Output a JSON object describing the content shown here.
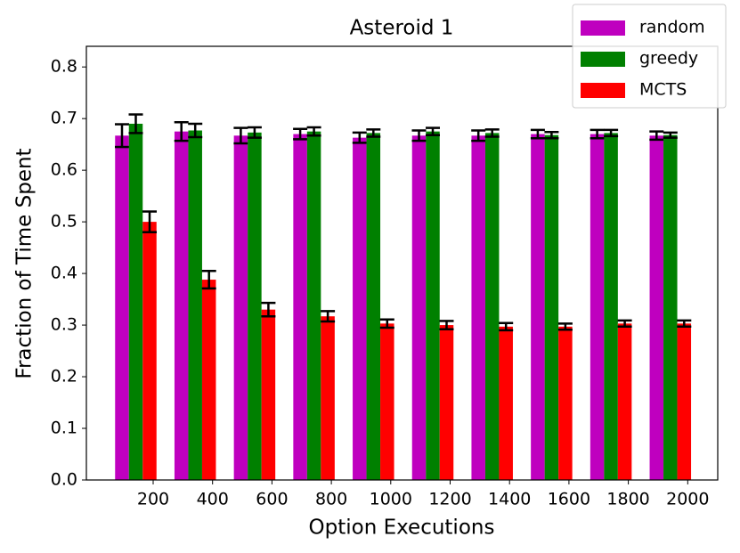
{
  "chart_data": {
    "type": "bar",
    "title": "Asteroid 1",
    "x_label": "Option Executions",
    "y_label": "Fraction of Time Spent",
    "categories": [
      "200",
      "400",
      "600",
      "800",
      "1000",
      "1200",
      "1400",
      "1600",
      "1800",
      "2000"
    ],
    "series": [
      {
        "name": "random",
        "color": "#bf00bf",
        "values": [
          0.667,
          0.675,
          0.667,
          0.67,
          0.663,
          0.667,
          0.667,
          0.67,
          0.67,
          0.667
        ],
        "errors": [
          0.022,
          0.018,
          0.015,
          0.01,
          0.01,
          0.01,
          0.01,
          0.008,
          0.008,
          0.008
        ]
      },
      {
        "name": "greedy",
        "color": "#008000",
        "values": [
          0.69,
          0.677,
          0.673,
          0.675,
          0.672,
          0.675,
          0.672,
          0.668,
          0.672,
          0.668
        ],
        "errors": [
          0.018,
          0.013,
          0.01,
          0.008,
          0.007,
          0.007,
          0.007,
          0.006,
          0.006,
          0.005
        ]
      },
      {
        "name": "MCTS",
        "color": "#ff0000",
        "values": [
          0.5,
          0.388,
          0.33,
          0.317,
          0.303,
          0.3,
          0.297,
          0.297,
          0.303,
          0.303
        ],
        "errors": [
          0.02,
          0.017,
          0.013,
          0.01,
          0.008,
          0.008,
          0.007,
          0.006,
          0.006,
          0.006
        ]
      }
    ],
    "ylim": [
      0,
      0.84
    ],
    "yticks": [
      {
        "value": 0,
        "label": "0.0"
      },
      0.1,
      0.2,
      0.3,
      0.4,
      0.5,
      0.6,
      0.7,
      0.8
    ],
    "legend": "upper right"
  }
}
